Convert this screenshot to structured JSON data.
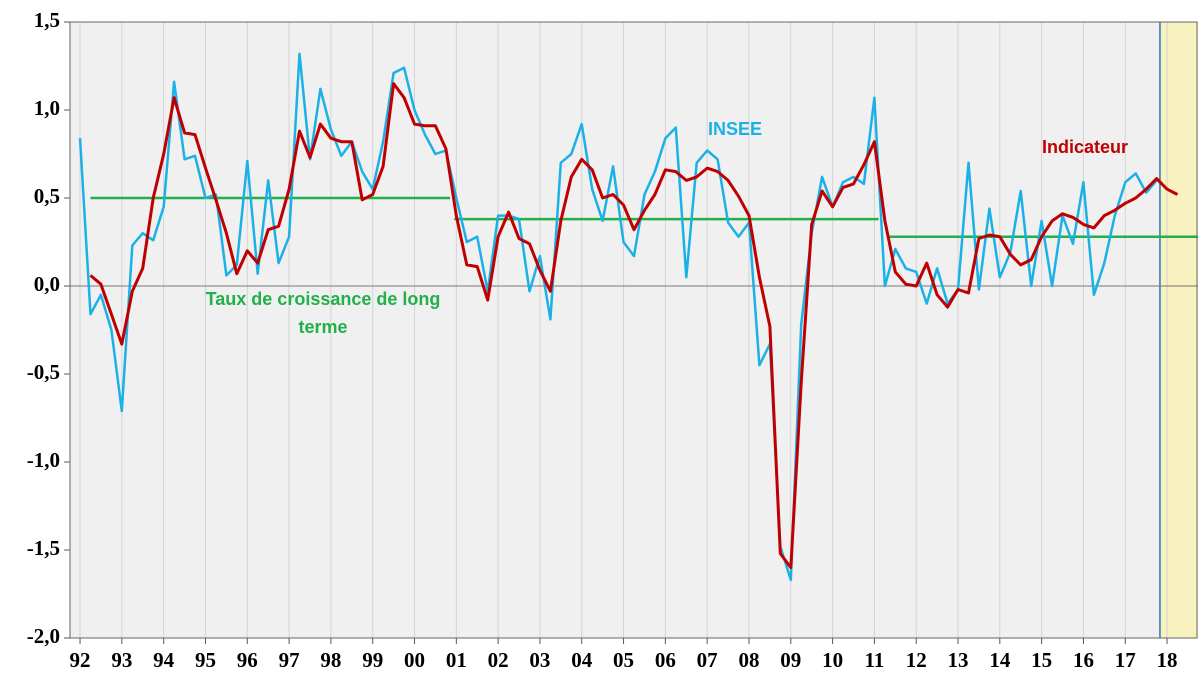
{
  "chart_data": {
    "type": "line",
    "x": [
      1992,
      1992.25,
      1992.5,
      1992.75,
      1993,
      1993.25,
      1993.5,
      1993.75,
      1994,
      1994.25,
      1994.5,
      1994.75,
      1995,
      1995.25,
      1995.5,
      1995.75,
      1996,
      1996.25,
      1996.5,
      1996.75,
      1997,
      1997.25,
      1997.5,
      1997.75,
      1998,
      1998.25,
      1998.5,
      1998.75,
      1999,
      1999.25,
      1999.5,
      1999.75,
      2000,
      2000.25,
      2000.5,
      2000.75,
      2001,
      2001.25,
      2001.5,
      2001.75,
      2002,
      2002.25,
      2002.5,
      2002.75,
      2003,
      2003.25,
      2003.5,
      2003.75,
      2004,
      2004.25,
      2004.5,
      2004.75,
      2005,
      2005.25,
      2005.5,
      2005.75,
      2006,
      2006.25,
      2006.5,
      2006.75,
      2007,
      2007.25,
      2007.5,
      2007.75,
      2008,
      2008.25,
      2008.5,
      2008.75,
      2009,
      2009.25,
      2009.5,
      2009.75,
      2010,
      2010.25,
      2010.5,
      2010.75,
      2011,
      2011.25,
      2011.5,
      2011.75,
      2012,
      2012.25,
      2012.5,
      2012.75,
      2013,
      2013.25,
      2013.5,
      2013.75,
      2014,
      2014.25,
      2014.5,
      2014.75,
      2015,
      2015.25,
      2015.5,
      2015.75,
      2016,
      2016.25,
      2016.5,
      2016.75,
      2017,
      2017.25,
      2017.5,
      2017.75,
      2018,
      2018.25
    ],
    "series": [
      {
        "name": "INSEE",
        "color": "#1bb1e7",
        "values": [
          0.84,
          -0.16,
          -0.05,
          -0.25,
          -0.71,
          0.23,
          0.3,
          0.26,
          0.45,
          1.16,
          0.72,
          0.74,
          0.5,
          0.52,
          0.06,
          0.12,
          0.71,
          0.07,
          0.6,
          0.13,
          0.28,
          1.32,
          0.72,
          1.12,
          0.89,
          0.74,
          0.82,
          0.65,
          0.55,
          0.82,
          1.21,
          1.24,
          1.0,
          0.86,
          0.75,
          0.77,
          0.5,
          0.25,
          0.28,
          -0.03,
          0.4,
          0.4,
          0.38,
          -0.03,
          0.17,
          -0.19,
          0.7,
          0.75,
          0.92,
          0.55,
          0.37,
          0.68,
          0.25,
          0.17,
          0.52,
          0.65,
          0.84,
          0.9,
          0.05,
          0.7,
          0.77,
          0.72,
          0.36,
          0.28,
          0.36,
          -0.45,
          -0.33,
          -1.48,
          -1.67,
          -0.22,
          0.3,
          0.62,
          0.45,
          0.59,
          0.62,
          0.58,
          1.07,
          0.0,
          0.21,
          0.1,
          0.08,
          -0.1,
          0.1,
          -0.1,
          -0.02,
          0.7,
          -0.02,
          0.44,
          0.05,
          0.19,
          0.54,
          0.0,
          0.37,
          0.0,
          0.4,
          0.24,
          0.59,
          -0.05,
          0.13,
          0.4,
          0.59,
          0.64,
          0.53,
          0.6,
          null,
          null
        ]
      },
      {
        "name": "Indicateur",
        "color": "#c00000",
        "values": [
          null,
          0.06,
          0.01,
          -0.16,
          -0.33,
          -0.03,
          0.1,
          0.5,
          0.75,
          1.07,
          0.87,
          0.86,
          0.67,
          0.49,
          0.3,
          0.07,
          0.2,
          0.13,
          0.32,
          0.34,
          0.55,
          0.88,
          0.73,
          0.92,
          0.84,
          0.82,
          0.82,
          0.49,
          0.52,
          0.68,
          1.15,
          1.07,
          0.92,
          0.91,
          0.91,
          0.78,
          0.4,
          0.12,
          0.11,
          -0.08,
          0.28,
          0.42,
          0.27,
          0.24,
          0.09,
          -0.03,
          0.37,
          0.62,
          0.72,
          0.66,
          0.5,
          0.52,
          0.46,
          0.32,
          0.43,
          0.52,
          0.66,
          0.65,
          0.6,
          0.62,
          0.67,
          0.65,
          0.6,
          0.51,
          0.4,
          0.05,
          -0.23,
          -1.52,
          -1.6,
          -0.55,
          0.35,
          0.54,
          0.45,
          0.56,
          0.58,
          0.69,
          0.82,
          0.37,
          0.08,
          0.01,
          0.0,
          0.13,
          -0.05,
          -0.12,
          -0.02,
          -0.04,
          0.27,
          0.29,
          0.28,
          0.18,
          0.12,
          0.15,
          0.28,
          0.37,
          0.41,
          0.39,
          0.35,
          0.33,
          0.4,
          0.43,
          0.47,
          0.5,
          0.55,
          0.61,
          0.55,
          0.52
        ]
      }
    ],
    "long_term": {
      "label": [
        "Taux de croissance de long",
        "terme"
      ],
      "color": "#22b04a",
      "segments": [
        {
          "x": [
            1992.25,
            2000.85
          ],
          "value": 0.5
        },
        {
          "x": [
            2000.95,
            2011.1
          ],
          "value": 0.38
        },
        {
          "x": [
            2011.3,
            2018.74
          ],
          "value": 0.28
        }
      ]
    },
    "highlight_xlim": [
      2017.83,
      2018.74
    ],
    "xlim": [
      1991.76,
      2018.74
    ],
    "ylim": [
      -2.0,
      1.5
    ],
    "xticks": [
      {
        "value": 1992,
        "label": "92"
      },
      {
        "value": 1993,
        "label": "93"
      },
      {
        "value": 1994,
        "label": "94"
      },
      {
        "value": 1995,
        "label": "95"
      },
      {
        "value": 1996,
        "label": "96"
      },
      {
        "value": 1997,
        "label": "97"
      },
      {
        "value": 1998,
        "label": "98"
      },
      {
        "value": 1999,
        "label": "99"
      },
      {
        "value": 2000,
        "label": "00"
      },
      {
        "value": 2001,
        "label": "01"
      },
      {
        "value": 2002,
        "label": "02"
      },
      {
        "value": 2003,
        "label": "03"
      },
      {
        "value": 2004,
        "label": "04"
      },
      {
        "value": 2005,
        "label": "05"
      },
      {
        "value": 2006,
        "label": "06"
      },
      {
        "value": 2007,
        "label": "07"
      },
      {
        "value": 2008,
        "label": "08"
      },
      {
        "value": 2009,
        "label": "09"
      },
      {
        "value": 2010,
        "label": "10"
      },
      {
        "value": 2011,
        "label": "11"
      },
      {
        "value": 2012,
        "label": "12"
      },
      {
        "value": 2013,
        "label": "13"
      },
      {
        "value": 2014,
        "label": "14"
      },
      {
        "value": 2015,
        "label": "15"
      },
      {
        "value": 2016,
        "label": "16"
      },
      {
        "value": 2017,
        "label": "17"
      },
      {
        "value": 2018,
        "label": "18"
      }
    ],
    "yticks": [
      {
        "value": -2.0,
        "label": "-2,0"
      },
      {
        "value": -1.5,
        "label": "-1,5"
      },
      {
        "value": -1.0,
        "label": "-1,0"
      },
      {
        "value": -0.5,
        "label": "-0,5"
      },
      {
        "value": 0,
        "label": "0,0"
      },
      {
        "value": 0.5,
        "label": "0,5"
      },
      {
        "value": 1.0,
        "label": "1,0"
      },
      {
        "value": 1.5,
        "label": "1,5"
      }
    ],
    "grid": true
  }
}
